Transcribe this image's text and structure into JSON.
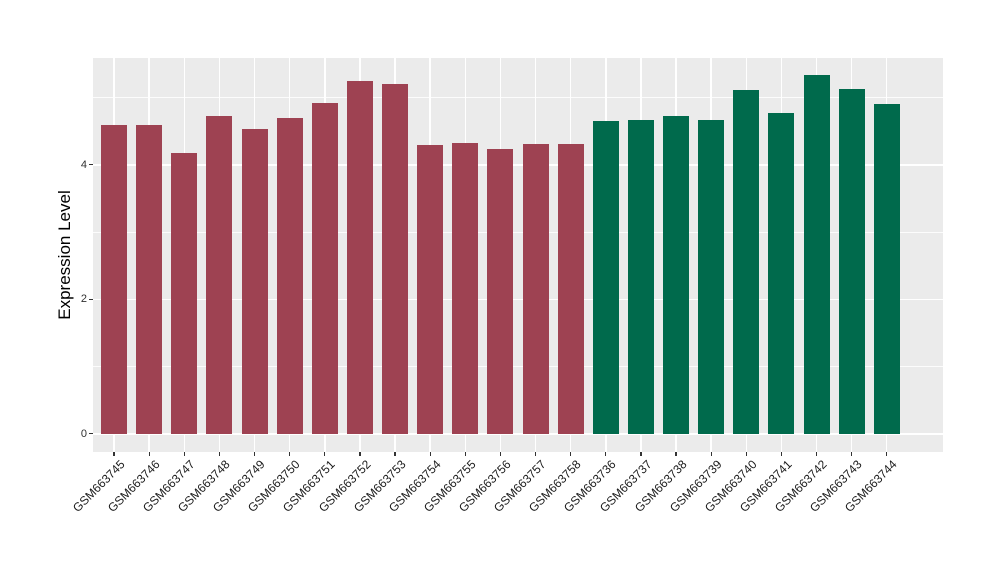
{
  "chart_data": {
    "type": "bar",
    "title": "",
    "xlabel": "",
    "ylabel": "Expression Level",
    "ylim": [
      -0.27,
      5.59
    ],
    "yticks": [
      0,
      2,
      4
    ],
    "ytick_labels": [
      "0",
      "2",
      "4"
    ],
    "yminor_gridlines": [
      1,
      3,
      5
    ],
    "grid": true,
    "legend_position": "none",
    "panel_background": "#EBEBEB",
    "gridline_color": "#FFFFFF",
    "categories": [
      "GSM663745",
      "GSM663746",
      "GSM663747",
      "GSM663748",
      "GSM663749",
      "GSM663750",
      "GSM663751",
      "GSM663752",
      "GSM663753",
      "GSM663754",
      "GSM663755",
      "GSM663756",
      "GSM663757",
      "GSM663758",
      "GSM663736",
      "GSM663737",
      "GSM663738",
      "GSM663739",
      "GSM663740",
      "GSM663741",
      "GSM663742",
      "GSM663743",
      "GSM663744"
    ],
    "values": [
      4.6,
      4.59,
      4.18,
      4.73,
      4.53,
      4.7,
      4.92,
      5.25,
      5.21,
      4.3,
      4.32,
      4.24,
      4.31,
      4.31,
      4.66,
      4.67,
      4.73,
      4.67,
      5.11,
      4.77,
      5.34,
      5.13,
      4.91
    ],
    "groups": [
      "A",
      "A",
      "A",
      "A",
      "A",
      "A",
      "A",
      "A",
      "A",
      "A",
      "A",
      "A",
      "A",
      "A",
      "B",
      "B",
      "B",
      "B",
      "B",
      "B",
      "B",
      "B",
      "B"
    ],
    "group_colors": {
      "A": "#9E4252",
      "B": "#006A4C"
    }
  }
}
